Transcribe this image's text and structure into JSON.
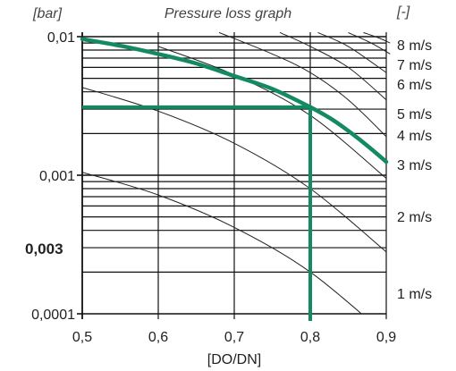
{
  "chart_data": {
    "type": "line",
    "title": "Pressure loss graph",
    "ylabel": "[bar]",
    "xlabel": "[DO/DN]",
    "right_axis_label": "[-]",
    "y_scale": "log",
    "xlim": [
      0.5,
      0.9
    ],
    "ylim": [
      0.0001,
      0.01
    ],
    "x_ticks": [
      "0,5",
      "0,6",
      "0,7",
      "0,8",
      "0,9"
    ],
    "x_tick_values": [
      0.5,
      0.6,
      0.7,
      0.8,
      0.9
    ],
    "y_ticks": [
      "0,01",
      "0,001",
      "0,0001"
    ],
    "y_tick_values": [
      0.01,
      0.001,
      0.0001
    ],
    "grid": true,
    "velocity_labels": [
      "8 m/s",
      "7 m/s",
      "6 m/s",
      "5 m/s",
      "4 m/s",
      "3 m/s",
      "2 m/s",
      "1 m/s"
    ],
    "series": [
      {
        "role": "highlight-curve",
        "x": [
          0.5,
          0.55,
          0.6,
          0.65,
          0.7,
          0.75,
          0.8,
          0.83,
          0.86,
          0.88,
          0.9
        ],
        "values": [
          0.0096,
          0.0086,
          0.0075,
          0.0064,
          0.0052,
          0.0042,
          0.0031,
          0.0025,
          0.0019,
          0.00155,
          0.00125
        ]
      },
      {
        "role": "velocity-curve",
        "x": [
          0.5,
          0.6,
          0.7,
          0.8,
          0.9
        ],
        "values": [
          0.00105,
          0.00072,
          0.00042,
          0.0002,
          7e-05
        ]
      },
      {
        "role": "velocity-curve",
        "x": [
          0.5,
          0.6,
          0.7,
          0.8,
          0.9
        ],
        "values": [
          0.0043,
          0.0029,
          0.0017,
          0.0008,
          0.00028
        ]
      },
      {
        "role": "velocity-curve",
        "x": [
          0.6,
          0.7,
          0.8,
          0.9
        ],
        "values": [
          0.0085,
          0.0053,
          0.0027,
          0.00095
        ]
      },
      {
        "role": "velocity-curve",
        "x": [
          0.68,
          0.75,
          0.8,
          0.85,
          0.9
        ],
        "values": [
          0.0107,
          0.0075,
          0.0055,
          0.0035,
          0.0019
        ]
      },
      {
        "role": "velocity-curve",
        "x": [
          0.76,
          0.8,
          0.85,
          0.9
        ],
        "values": [
          0.0107,
          0.0085,
          0.006,
          0.0035
        ]
      },
      {
        "role": "velocity-curve",
        "x": [
          0.81,
          0.85,
          0.9
        ],
        "values": [
          0.0107,
          0.0085,
          0.0055
        ]
      },
      {
        "role": "velocity-curve",
        "x": [
          0.85,
          0.88,
          0.905
        ],
        "values": [
          0.0107,
          0.009,
          0.0075
        ]
      },
      {
        "role": "velocity-curve",
        "x": [
          0.87,
          0.89,
          0.905
        ],
        "values": [
          0.0107,
          0.0098,
          0.009
        ]
      }
    ],
    "annotation": {
      "label": "0,003",
      "x": 0.8,
      "y": 0.0031,
      "color": "#138a63"
    },
    "highlight_color": "#138a63"
  }
}
